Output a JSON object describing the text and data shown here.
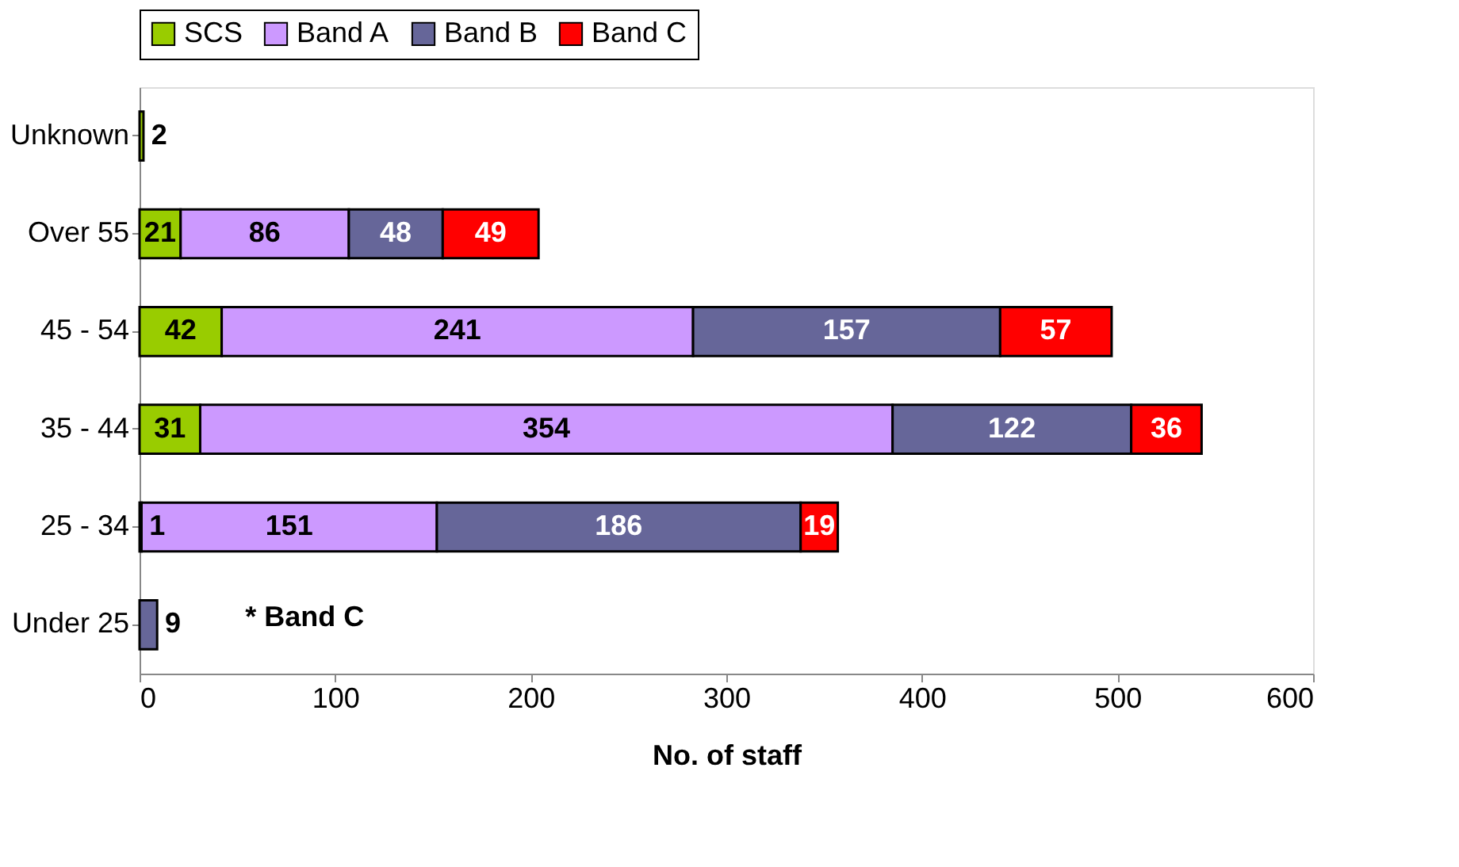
{
  "chart_data": {
    "type": "bar",
    "orientation": "horizontal",
    "stacked": true,
    "xlabel": "No. of staff",
    "categories": [
      "Unknown",
      "Over 55",
      "45 - 54",
      "35 - 44",
      "25 - 34",
      "Under 25"
    ],
    "series": [
      {
        "name": "SCS",
        "color": "#99cc00",
        "values": [
          2,
          21,
          42,
          31,
          1,
          null
        ]
      },
      {
        "name": "Band A",
        "color": "#cc99ff",
        "values": [
          null,
          86,
          241,
          354,
          151,
          null
        ]
      },
      {
        "name": "Band B",
        "color": "#666699",
        "values": [
          null,
          48,
          157,
          122,
          186,
          9
        ]
      },
      {
        "name": "Band C",
        "color": "#ff0000",
        "values": [
          null,
          49,
          57,
          36,
          19,
          null
        ]
      }
    ],
    "xlim": [
      0,
      600
    ],
    "xticks": [
      0,
      100,
      200,
      300,
      400,
      500,
      600
    ],
    "grid": false,
    "legend": "top",
    "data_labels": true,
    "annotations": [
      "* Band C"
    ]
  }
}
